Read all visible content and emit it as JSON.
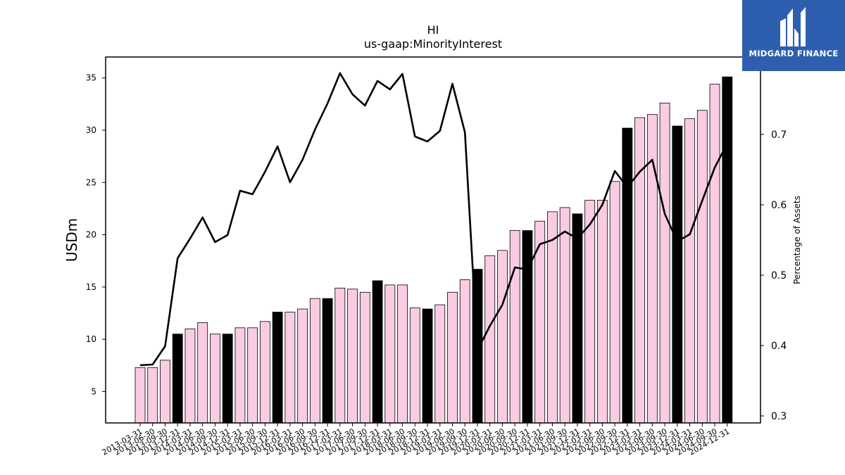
{
  "chart_data": {
    "type": "bar",
    "title": "HI",
    "subtitle": "us-gaap:MinorityInterest",
    "ylabel": "USDm",
    "y2label": "Percentage of Assets",
    "ylim": [
      2,
      37
    ],
    "y2lim": [
      0.29,
      0.81
    ],
    "yticks": [
      5,
      10,
      15,
      20,
      25,
      30,
      35
    ],
    "y2ticks": [
      0.3,
      0.4,
      0.5,
      0.6,
      0.7
    ],
    "bar_colors": {
      "quarter": "#f9cce3",
      "year_end": "#000000"
    },
    "line_color": "#000000",
    "categories": [
      "2013-03-31",
      "2013-06-30",
      "2013-09-30",
      "2013-12-31",
      "2014-03-31",
      "2014-06-30",
      "2014-09-30",
      "2014-12-31",
      "2015-03-31",
      "2015-06-30",
      "2015-09-30",
      "2015-12-31",
      "2016-03-31",
      "2016-06-30",
      "2016-09-30",
      "2016-12-31",
      "2017-03-31",
      "2017-06-30",
      "2017-09-30",
      "2017-12-31",
      "2018-03-31",
      "2018-06-30",
      "2018-09-30",
      "2018-12-31",
      "2019-03-31",
      "2019-06-30",
      "2019-09-30",
      "2019-12-31",
      "2020-03-31",
      "2020-06-30",
      "2020-09-30",
      "2020-12-31",
      "2021-03-31",
      "2021-06-30",
      "2021-09-30",
      "2021-12-31",
      "2022-03-31",
      "2022-06-30",
      "2022-09-30",
      "2022-12-31",
      "2023-03-31",
      "2023-06-30",
      "2023-09-30",
      "2023-12-31",
      "2024-03-31",
      "2024-06-30",
      "2024-09-30",
      "2024-12-31"
    ],
    "series": [
      {
        "type": "bar",
        "values": [
          7.3,
          7.3,
          8.0,
          10.5,
          11.0,
          11.6,
          10.5,
          10.5,
          11.1,
          11.1,
          11.7,
          12.6,
          12.6,
          12.9,
          13.9,
          13.9,
          14.9,
          14.8,
          14.5,
          15.6,
          15.2,
          15.2,
          13.0,
          12.9,
          13.3,
          14.5,
          15.7,
          16.7,
          18.0,
          18.5,
          20.4,
          20.4,
          21.3,
          22.2,
          22.6,
          22.0,
          23.3,
          23.3,
          25.1,
          30.2,
          31.2,
          31.5,
          32.6,
          30.4,
          31.1,
          31.9,
          34.4,
          35.1
        ]
      },
      {
        "type": "line",
        "axis": "right",
        "values": [
          0.372,
          0.373,
          0.399,
          0.524,
          0.552,
          0.582,
          0.547,
          0.557,
          0.62,
          0.615,
          0.647,
          0.683,
          0.632,
          0.664,
          0.707,
          0.744,
          0.787,
          0.757,
          0.741,
          0.776,
          0.764,
          0.786,
          0.697,
          0.69,
          0.705,
          0.772,
          0.703,
          0.393,
          0.428,
          0.458,
          0.511,
          0.508,
          0.544,
          0.55,
          0.562,
          0.552,
          0.572,
          0.6,
          0.648,
          0.625,
          0.647,
          0.664,
          0.587,
          0.548,
          0.558,
          0.606,
          0.653,
          0.687
        ]
      }
    ]
  },
  "brand": {
    "name": "MIDGARD FINANCE",
    "logo_color": "#2d5fae"
  }
}
